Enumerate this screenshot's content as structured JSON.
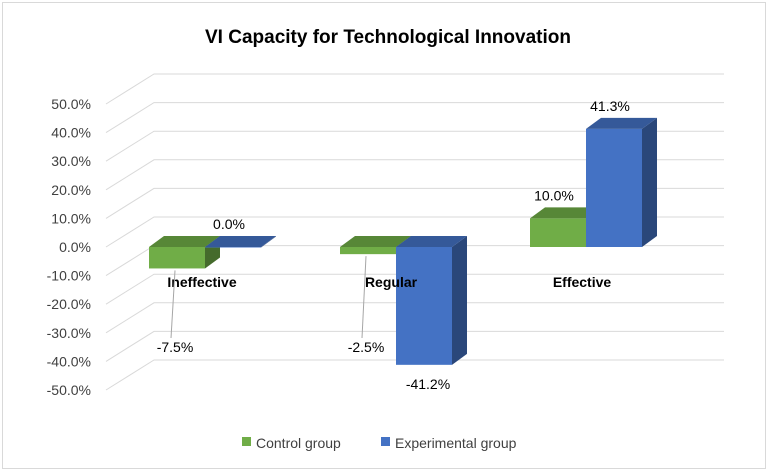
{
  "chart_data": {
    "type": "bar",
    "title": "VI Capacity for Technological Innovation",
    "categories": [
      "Ineffective",
      "Regular",
      "Effective"
    ],
    "series": [
      {
        "name": "Control group",
        "values": [
          -7.5,
          -2.5,
          10.0
        ],
        "labels": [
          "-7.5%",
          "-2.5%",
          "10.0%"
        ],
        "color": "#70ad47"
      },
      {
        "name": "Experimental group",
        "values": [
          0.0,
          -41.2,
          41.3
        ],
        "labels": [
          "0.0%",
          "-41.2%",
          "41.3%"
        ],
        "color": "#4472c4"
      }
    ],
    "y_ticks": [
      "50.0%",
      "40.0%",
      "30.0%",
      "20.0%",
      "10.0%",
      "0.0%",
      "-10.0%",
      "-20.0%",
      "-30.0%",
      "-40.0%",
      "-50.0%"
    ],
    "ylim": [
      -50,
      50
    ],
    "grid": true,
    "legend": "bottom",
    "style": "3d-clustered-column"
  }
}
